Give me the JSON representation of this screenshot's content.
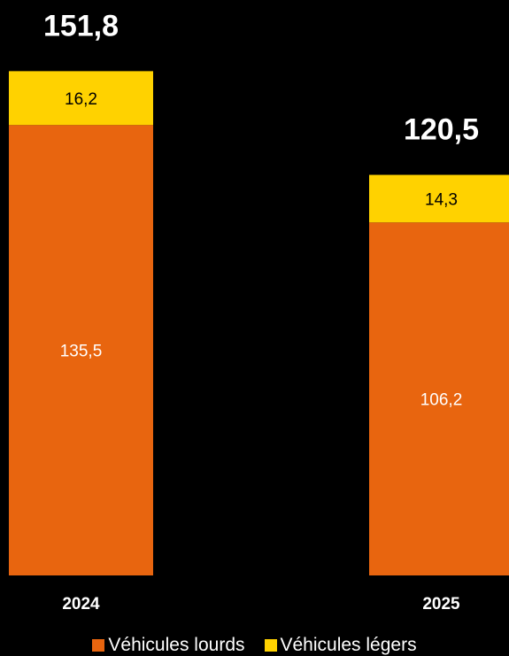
{
  "chart_data": {
    "type": "bar",
    "stacked": true,
    "categories": [
      "2024",
      "2025"
    ],
    "series": [
      {
        "name": "Véhicules lourds",
        "values": [
          135.5,
          106.2
        ],
        "color": "#E8650F",
        "value_labels": [
          "135,5",
          "106,2"
        ]
      },
      {
        "name": "Véhicules légers",
        "values": [
          16.2,
          14.3
        ],
        "color": "#FFD200",
        "value_labels": [
          "16,2",
          "14,3"
        ]
      }
    ],
    "totals": [
      151.8,
      120.5
    ],
    "total_labels": [
      "151,8",
      "120,5"
    ],
    "title": "",
    "xlabel": "",
    "ylabel": "",
    "ylim": [
      0,
      151.8
    ],
    "grid": false,
    "legend": "bottom-center",
    "background": "#000000"
  }
}
